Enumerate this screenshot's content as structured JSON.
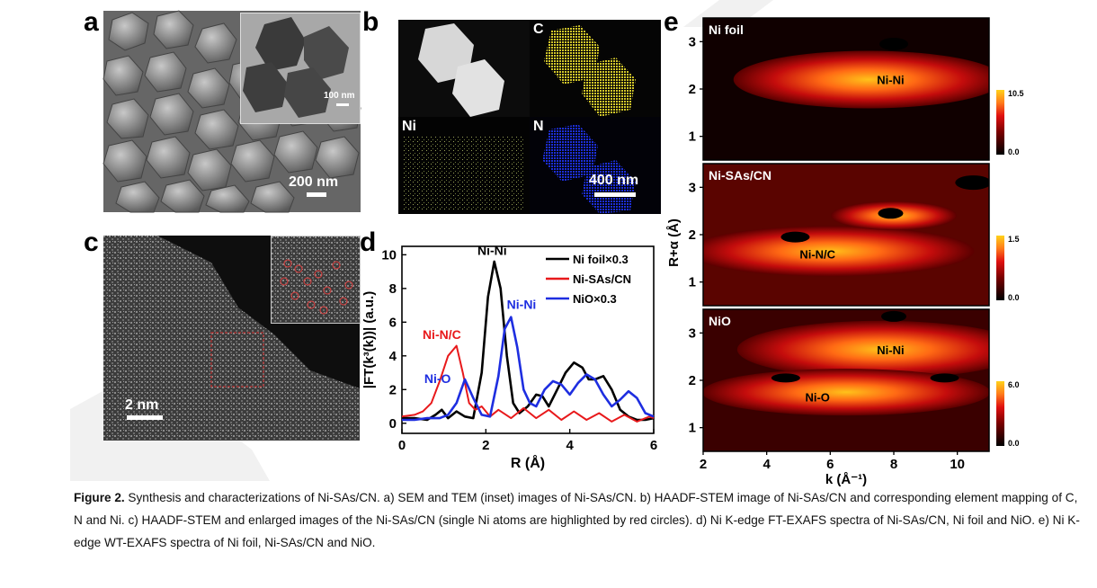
{
  "panels": {
    "a": {
      "letter": "a",
      "scale_main": "200 nm",
      "scale_inset": "100 nm"
    },
    "b": {
      "letter": "b",
      "maps": [
        "C",
        "Ni",
        "N"
      ],
      "scale": "400 nm"
    },
    "c": {
      "letter": "c",
      "scale": "2 nm"
    },
    "d": {
      "letter": "d",
      "peak_labels": {
        "nini_black": "Ni-Ni",
        "nini_blue": "Ni-Ni",
        "ninc": "Ni-N/C",
        "nio": "Ni-O"
      }
    },
    "e": {
      "letter": "e",
      "ylabel": "R+α (Å)",
      "xlabel": "k (Å⁻¹)",
      "xticks": [
        "2",
        "4",
        "6",
        "8",
        "10"
      ],
      "yticks": [
        "1",
        "2",
        "3"
      ],
      "subplots": [
        {
          "name": "Ni foil",
          "feature": "Ni-Ni",
          "cbar_max": "10.5",
          "cbar_min": "0.0"
        },
        {
          "name": "Ni-SAs/CN",
          "feature": "Ni-N/C",
          "cbar_max": "1.5",
          "cbar_min": "0.0"
        },
        {
          "name": "NiO",
          "feature": "Ni-Ni",
          "feature2": "Ni-O",
          "cbar_max": "6.0",
          "cbar_min": "0.0"
        }
      ]
    }
  },
  "chart_data": {
    "type": "line",
    "xlabel": "R (Å)",
    "ylabel": "|FT(k³(k))| (a.u.)",
    "xlim": [
      0,
      6
    ],
    "ylim": [
      0,
      10.5
    ],
    "xticks": [
      "0",
      "2",
      "4",
      "6"
    ],
    "yticks": [
      "0",
      "2",
      "4",
      "6",
      "8",
      "10"
    ],
    "legend": "top-right",
    "series": [
      {
        "name": "Ni foil×0.3",
        "color": "#000000",
        "x": [
          0,
          0.3,
          0.6,
          0.8,
          0.95,
          1.1,
          1.3,
          1.5,
          1.7,
          1.9,
          2.05,
          2.2,
          2.35,
          2.5,
          2.65,
          2.8,
          3.0,
          3.2,
          3.35,
          3.5,
          3.7,
          3.9,
          4.1,
          4.3,
          4.45,
          4.6,
          4.8,
          5.0,
          5.2,
          5.4,
          5.6,
          5.8,
          6.0
        ],
        "y": [
          0.3,
          0.3,
          0.2,
          0.5,
          0.8,
          0.3,
          0.7,
          0.4,
          0.3,
          3.0,
          7.5,
          9.6,
          8.0,
          4.0,
          1.2,
          0.6,
          1.0,
          1.7,
          1.6,
          1.0,
          2.0,
          3.0,
          3.6,
          3.3,
          2.6,
          2.6,
          2.8,
          2.0,
          0.8,
          0.4,
          0.2,
          0.2,
          0.3
        ]
      },
      {
        "name": "Ni-SAs/CN",
        "color": "#e8191b",
        "x": [
          0,
          0.3,
          0.5,
          0.7,
          0.9,
          1.1,
          1.3,
          1.45,
          1.6,
          1.75,
          1.9,
          2.1,
          2.3,
          2.6,
          2.9,
          3.2,
          3.5,
          3.8,
          4.1,
          4.4,
          4.7,
          5.0,
          5.3,
          5.6,
          5.9,
          6.0
        ],
        "y": [
          0.4,
          0.5,
          0.7,
          1.2,
          2.5,
          4.0,
          4.6,
          3.0,
          1.2,
          0.8,
          1.0,
          0.4,
          0.8,
          0.3,
          0.9,
          0.3,
          0.8,
          0.2,
          0.7,
          0.2,
          0.6,
          0.1,
          0.5,
          0.1,
          0.4,
          0.3
        ]
      },
      {
        "name": "NiO×0.3",
        "color": "#1e2ee0",
        "x": [
          0,
          0.3,
          0.6,
          0.9,
          1.1,
          1.3,
          1.5,
          1.7,
          1.9,
          2.1,
          2.3,
          2.45,
          2.6,
          2.75,
          2.9,
          3.05,
          3.2,
          3.4,
          3.6,
          3.8,
          4.0,
          4.2,
          4.4,
          4.6,
          4.8,
          5.0,
          5.2,
          5.4,
          5.6,
          5.8,
          6.0
        ],
        "y": [
          0.2,
          0.2,
          0.3,
          0.3,
          0.5,
          1.2,
          2.6,
          1.5,
          0.5,
          0.4,
          2.8,
          5.6,
          6.3,
          4.5,
          2.0,
          1.2,
          1.0,
          2.0,
          2.5,
          2.3,
          1.7,
          2.4,
          2.9,
          2.6,
          1.7,
          1.0,
          1.4,
          1.9,
          1.5,
          0.6,
          0.4
        ]
      }
    ]
  },
  "caption": {
    "figure_label": "Figure 2.",
    "text": " Synthesis and characterizations of Ni-SAs/CN. a) SEM and TEM (inset) images of Ni-SAs/CN. b) HAADF-STEM image of Ni-SAs/CN and corresponding element mapping of C, N and Ni. c) HAADF-STEM and enlarged images of the Ni-SAs/CN (single Ni atoms are highlighted by red circles). d) Ni K-edge FT-EXAFS spectra of Ni-SAs/CN, Ni foil and NiO. e) Ni K-edge WT-EXAFS spectra of Ni foil, Ni-SAs/CN and NiO."
  }
}
